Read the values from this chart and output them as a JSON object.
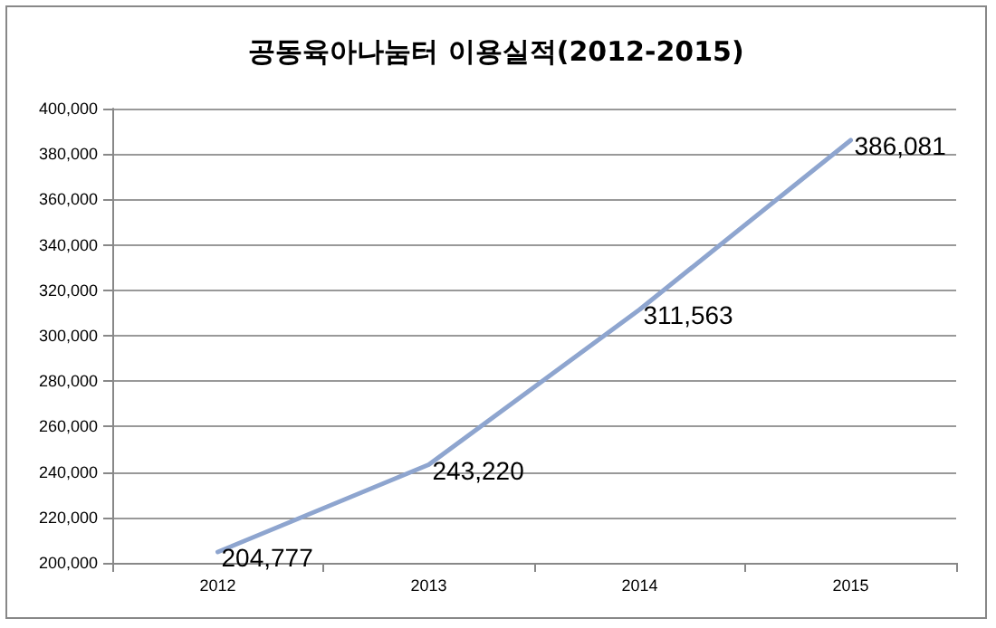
{
  "chart_data": {
    "type": "line",
    "title": "공동육아나눔터 이용실적(2012-2015)",
    "categories": [
      "2012",
      "2013",
      "2014",
      "2015"
    ],
    "series": [
      {
        "color": "#8ea5cf",
        "values": [
          204777,
          243220,
          311563,
          386081
        ],
        "value_labels": [
          "204,777",
          "243,220",
          "311,563",
          "386,081"
        ]
      }
    ],
    "ylim": [
      200000,
      400000
    ],
    "yticks": [
      {
        "value": 200000,
        "label": "200,000"
      },
      {
        "value": 220000,
        "label": "220,000"
      },
      {
        "value": 240000,
        "label": "240,000"
      },
      {
        "value": 260000,
        "label": "260,000"
      },
      {
        "value": 280000,
        "label": "280,000"
      },
      {
        "value": 300000,
        "label": "300,000"
      },
      {
        "value": 320000,
        "label": "320,000"
      },
      {
        "value": 340000,
        "label": "340,000"
      },
      {
        "value": 360000,
        "label": "360,000"
      },
      {
        "value": 380000,
        "label": "380,000"
      },
      {
        "value": 400000,
        "label": "400,000"
      }
    ],
    "grid": "y",
    "marker": "none",
    "line_style": "solid"
  }
}
